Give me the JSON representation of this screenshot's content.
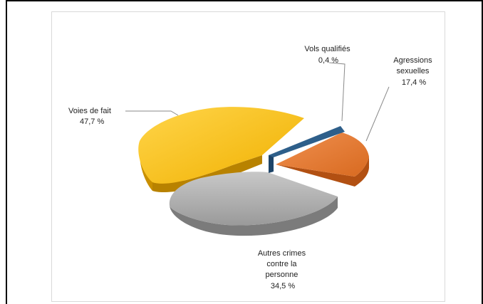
{
  "chart_data": {
    "type": "pie",
    "style": "3d-exploded",
    "slices": [
      {
        "label": "Voies de fait",
        "value": 47.7,
        "value_label": "47,7 %",
        "color": "#f3b800"
      },
      {
        "label": "Vols qualifiés",
        "value": 0.4,
        "value_label": "0,4 %",
        "color": "#2e5f8a"
      },
      {
        "label": "Agressions sexuelles",
        "value": 17.4,
        "value_label": "17,4 %",
        "color": "#e07a30"
      },
      {
        "label": "Autres crimes contre la personne",
        "value": 34.5,
        "value_label": "34,5 %",
        "color": "#a9a9a9"
      }
    ],
    "label_lines": {
      "voies": [
        "Voies de fait",
        "47,7 %"
      ],
      "vols": [
        "Vols qualifiés",
        "0,4 %"
      ],
      "agressions": [
        "Agressions",
        "sexuelles",
        "17,4 %"
      ],
      "autres": [
        "Autres crimes",
        "contre la",
        "personne",
        "34,5 %"
      ]
    }
  }
}
